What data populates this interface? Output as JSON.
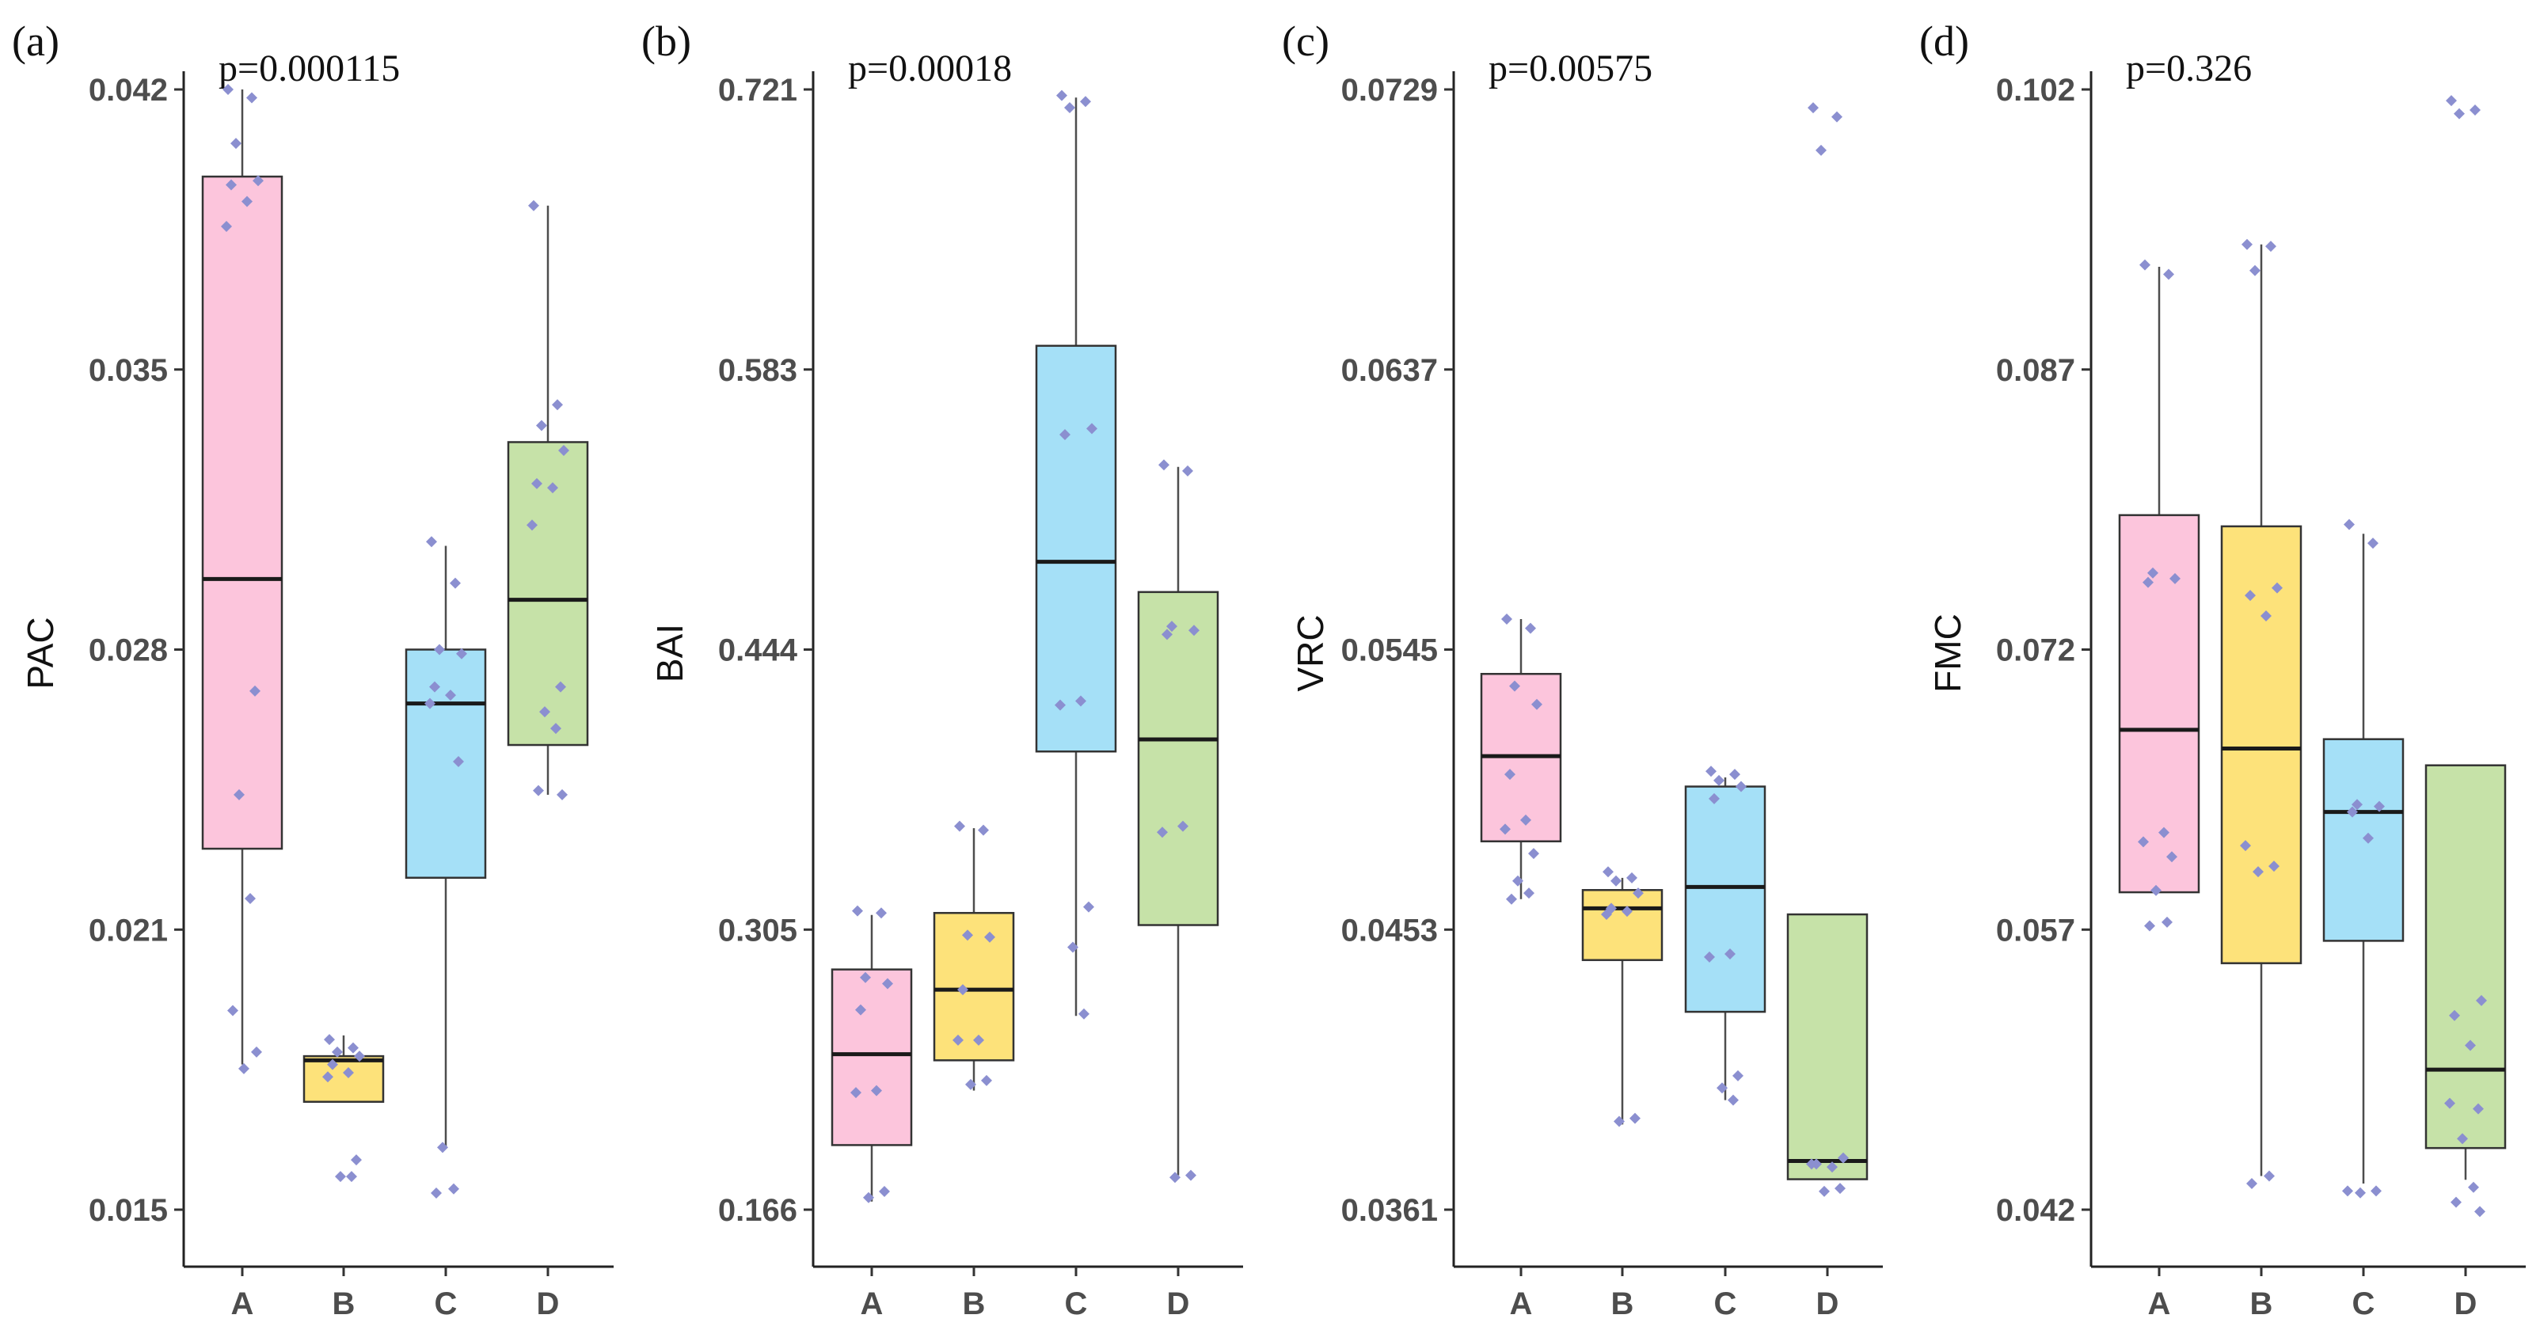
{
  "chart_data": [
    {
      "type": "box",
      "panel": "(a)",
      "annotation": "p=0.000115",
      "ylabel": "PAC",
      "categories": [
        "A",
        "B",
        "C",
        "D"
      ],
      "yticks": [
        "0.015",
        "0.021",
        "0.028",
        "0.035",
        "0.042"
      ],
      "ylim": [
        0.0142,
        0.043
      ],
      "colors": [
        "#fcc5dc",
        "#fde27a",
        "#a5e0f7",
        "#c6e2a8"
      ],
      "boxes": [
        {
          "category": "A",
          "whisker_low": 0.0185,
          "q1": 0.0237,
          "median": 0.0302,
          "q3": 0.0399,
          "whisker_high": 0.042,
          "points": [
            0.042,
            0.0418,
            0.0407,
            0.0398,
            0.0397,
            0.0393,
            0.0387,
            0.0275,
            0.025,
            0.0225,
            0.0198,
            0.0188,
            0.0184
          ]
        },
        {
          "category": "B",
          "whisker_low": 0.0176,
          "q1": 0.0176,
          "median": 0.0186,
          "q3": 0.0187,
          "whisker_high": 0.0192,
          "points": [
            0.0191,
            0.0189,
            0.0188,
            0.0187,
            0.0185,
            0.0183,
            0.0182,
            0.0162,
            0.0158,
            0.0158
          ]
        },
        {
          "category": "C",
          "whisker_low": 0.0165,
          "q1": 0.023,
          "median": 0.0272,
          "q3": 0.0285,
          "whisker_high": 0.031,
          "points": [
            0.0311,
            0.0301,
            0.0285,
            0.0284,
            0.0276,
            0.0274,
            0.0272,
            0.0258,
            0.0165,
            0.0155,
            0.0154
          ]
        },
        {
          "category": "D",
          "whisker_low": 0.025,
          "q1": 0.0262,
          "median": 0.0297,
          "q3": 0.0335,
          "whisker_high": 0.0392,
          "points": [
            0.0392,
            0.0344,
            0.0339,
            0.0333,
            0.0325,
            0.0324,
            0.0315,
            0.0276,
            0.027,
            0.0266,
            0.0251,
            0.025
          ]
        }
      ]
    },
    {
      "type": "box",
      "panel": "(b)",
      "annotation": "p=0.00018",
      "ylabel": "BAI",
      "categories": [
        "A",
        "B",
        "C",
        "D"
      ],
      "yticks": [
        "0.166",
        "0.305",
        "0.444",
        "0.583",
        "0.721"
      ],
      "ylim": [
        0.158,
        0.73
      ],
      "colors": [
        "#fcc5dc",
        "#fde27a",
        "#a5e0f7",
        "#c6e2a8"
      ],
      "boxes": [
        {
          "category": "A",
          "whisker_low": 0.17,
          "q1": 0.198,
          "median": 0.243,
          "q3": 0.285,
          "whisker_high": 0.312,
          "points": [
            0.314,
            0.313,
            0.281,
            0.278,
            0.265,
            0.225,
            0.224,
            0.175,
            0.172
          ]
        },
        {
          "category": "B",
          "whisker_low": 0.225,
          "q1": 0.24,
          "median": 0.275,
          "q3": 0.313,
          "whisker_high": 0.355,
          "points": [
            0.356,
            0.354,
            0.302,
            0.301,
            0.275,
            0.25,
            0.25,
            0.23,
            0.228
          ]
        },
        {
          "category": "C",
          "whisker_low": 0.262,
          "q1": 0.393,
          "median": 0.487,
          "q3": 0.594,
          "whisker_high": 0.717,
          "points": [
            0.718,
            0.715,
            0.712,
            0.553,
            0.55,
            0.418,
            0.416,
            0.316,
            0.296,
            0.263
          ]
        },
        {
          "category": "D",
          "whisker_low": 0.183,
          "q1": 0.307,
          "median": 0.399,
          "q3": 0.472,
          "whisker_high": 0.534,
          "points": [
            0.535,
            0.532,
            0.455,
            0.453,
            0.451,
            0.356,
            0.353,
            0.183,
            0.182
          ]
        }
      ]
    },
    {
      "type": "box",
      "panel": "(c)",
      "annotation": "p=0.00575",
      "ylabel": "VRC",
      "categories": [
        "A",
        "B",
        "C",
        "D"
      ],
      "yticks": [
        "0.0361",
        "0.0453",
        "0.0545",
        "0.0637",
        "0.0729"
      ],
      "ylim": [
        0.0356,
        0.0735
      ],
      "colors": [
        "#fcc5dc",
        "#fde27a",
        "#a5e0f7",
        "#c6e2a8"
      ],
      "boxes": [
        {
          "category": "A",
          "whisker_low": 0.0463,
          "q1": 0.0482,
          "median": 0.051,
          "q3": 0.0537,
          "whisker_high": 0.0555,
          "points": [
            0.0555,
            0.0552,
            0.0533,
            0.0527,
            0.0504,
            0.0489,
            0.0486,
            0.0478,
            0.0469,
            0.0465,
            0.0463
          ]
        },
        {
          "category": "B",
          "whisker_low": 0.0389,
          "q1": 0.0443,
          "median": 0.046,
          "q3": 0.0466,
          "whisker_high": 0.047,
          "points": [
            0.0472,
            0.047,
            0.0469,
            0.0465,
            0.046,
            0.0459,
            0.0458,
            0.0391,
            0.039
          ]
        },
        {
          "category": "C",
          "whisker_low": 0.0397,
          "q1": 0.0426,
          "median": 0.0467,
          "q3": 0.05,
          "whisker_high": 0.0503,
          "points": [
            0.0505,
            0.0504,
            0.0502,
            0.05,
            0.0496,
            0.0445,
            0.0444,
            0.0405,
            0.0401,
            0.0397
          ]
        },
        {
          "category": "D",
          "whisker_low": 0.0371,
          "q1": 0.0371,
          "median": 0.0377,
          "q3": 0.0458,
          "whisker_high": 0.0458,
          "points": [
            0.0723,
            0.072,
            0.0709,
            0.0378,
            0.0376,
            0.0375,
            0.0376,
            0.0368,
            0.0367
          ]
        }
      ]
    },
    {
      "type": "box",
      "panel": "(d)",
      "annotation": "p=0.326",
      "ylabel": "FMC",
      "categories": [
        "A",
        "B",
        "C",
        "D"
      ],
      "yticks": [
        "0.042",
        "0.057",
        "0.072",
        "0.087",
        "0.102"
      ],
      "ylim": [
        0.0408,
        0.1035
      ],
      "colors": [
        "#fcc5dc",
        "#fde27a",
        "#a5e0f7",
        "#c6e2a8"
      ],
      "boxes": [
        {
          "category": "A",
          "whisker_low": 0.059,
          "q1": 0.059,
          "median": 0.0677,
          "q3": 0.0792,
          "whisker_high": 0.0925,
          "points": [
            0.0926,
            0.0921,
            0.0761,
            0.0758,
            0.0756,
            0.0622,
            0.0617,
            0.0609,
            0.0591,
            0.0574,
            0.0572
          ]
        },
        {
          "category": "B",
          "whisker_low": 0.0438,
          "q1": 0.0552,
          "median": 0.0667,
          "q3": 0.0786,
          "whisker_high": 0.0937,
          "points": [
            0.0937,
            0.0936,
            0.0923,
            0.0753,
            0.0749,
            0.0738,
            0.0615,
            0.0604,
            0.0601,
            0.0438,
            0.0434
          ]
        },
        {
          "category": "C",
          "whisker_low": 0.0434,
          "q1": 0.0564,
          "median": 0.0633,
          "q3": 0.0672,
          "whisker_high": 0.0782,
          "points": [
            0.0787,
            0.0777,
            0.0637,
            0.0636,
            0.0633,
            0.0619,
            0.043,
            0.043,
            0.0429
          ]
        },
        {
          "category": "D",
          "whisker_low": 0.0436,
          "q1": 0.0453,
          "median": 0.0495,
          "q3": 0.0658,
          "whisker_high": 0.0658,
          "points": [
            0.1014,
            0.1009,
            0.1007,
            0.0532,
            0.0524,
            0.0508,
            0.0477,
            0.0474,
            0.0458,
            0.0432,
            0.0424,
            0.0419
          ]
        }
      ]
    }
  ]
}
